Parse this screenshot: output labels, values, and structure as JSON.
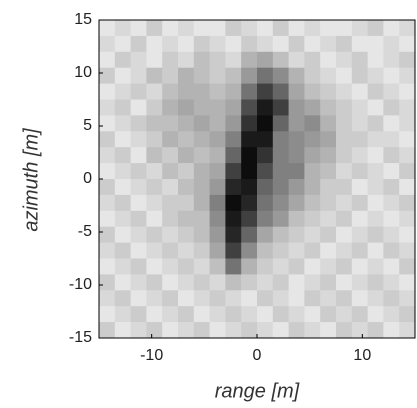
{
  "chart_data": {
    "type": "heatmap",
    "xlabel": "range [m]",
    "ylabel": "azimuth [m]",
    "xlim": [
      -15,
      15
    ],
    "ylim": [
      -15,
      15
    ],
    "xticks": [
      -10,
      0,
      10
    ],
    "yticks": [
      -15,
      -10,
      -5,
      0,
      5,
      10,
      15
    ],
    "zlim": [
      0,
      1
    ],
    "colors": [
      "#ffffff",
      "#000000"
    ],
    "x": [
      -14.25,
      -12.75,
      -11.25,
      -9.75,
      -8.25,
      -6.75,
      -5.25,
      -3.75,
      -2.25,
      -0.75,
      0.75,
      2.25,
      3.75,
      5.25,
      6.75,
      8.25,
      9.75,
      11.25,
      12.75,
      14.25
    ],
    "y": [
      14.25,
      12.75,
      11.25,
      9.75,
      8.25,
      6.75,
      5.25,
      3.75,
      2.25,
      0.75,
      -0.75,
      -2.25,
      -3.75,
      -5.25,
      -6.75,
      -8.25,
      -9.75,
      -11.25,
      -12.75,
      -14.25
    ],
    "z": [
      [
        0.1,
        0.15,
        0.1,
        0.2,
        0.1,
        0.15,
        0.1,
        0.1,
        0.2,
        0.15,
        0.1,
        0.2,
        0.1,
        0.15,
        0.1,
        0.1,
        0.15,
        0.2,
        0.1,
        0.15
      ],
      [
        0.15,
        0.1,
        0.2,
        0.1,
        0.15,
        0.1,
        0.2,
        0.15,
        0.1,
        0.2,
        0.15,
        0.1,
        0.2,
        0.1,
        0.15,
        0.2,
        0.1,
        0.1,
        0.15,
        0.1
      ],
      [
        0.1,
        0.2,
        0.15,
        0.1,
        0.2,
        0.15,
        0.25,
        0.2,
        0.15,
        0.3,
        0.35,
        0.25,
        0.15,
        0.2,
        0.1,
        0.15,
        0.2,
        0.1,
        0.15,
        0.2
      ],
      [
        0.2,
        0.1,
        0.15,
        0.25,
        0.2,
        0.3,
        0.25,
        0.2,
        0.25,
        0.4,
        0.55,
        0.45,
        0.3,
        0.2,
        0.15,
        0.1,
        0.2,
        0.15,
        0.1,
        0.15
      ],
      [
        0.1,
        0.15,
        0.2,
        0.15,
        0.25,
        0.3,
        0.3,
        0.25,
        0.3,
        0.55,
        0.75,
        0.6,
        0.35,
        0.25,
        0.2,
        0.15,
        0.1,
        0.2,
        0.15,
        0.1
      ],
      [
        0.15,
        0.2,
        0.1,
        0.2,
        0.3,
        0.35,
        0.3,
        0.3,
        0.35,
        0.7,
        0.9,
        0.75,
        0.4,
        0.35,
        0.25,
        0.2,
        0.15,
        0.1,
        0.2,
        0.15
      ],
      [
        0.1,
        0.15,
        0.2,
        0.25,
        0.25,
        0.3,
        0.35,
        0.3,
        0.4,
        0.8,
        0.95,
        0.6,
        0.4,
        0.45,
        0.3,
        0.2,
        0.15,
        0.2,
        0.1,
        0.15
      ],
      [
        0.2,
        0.1,
        0.15,
        0.2,
        0.3,
        0.25,
        0.3,
        0.35,
        0.5,
        0.9,
        0.9,
        0.5,
        0.45,
        0.4,
        0.35,
        0.2,
        0.2,
        0.15,
        0.15,
        0.1
      ],
      [
        0.15,
        0.2,
        0.1,
        0.25,
        0.2,
        0.3,
        0.25,
        0.3,
        0.6,
        0.95,
        0.8,
        0.5,
        0.45,
        0.35,
        0.3,
        0.2,
        0.15,
        0.1,
        0.2,
        0.15
      ],
      [
        0.1,
        0.15,
        0.2,
        0.15,
        0.25,
        0.2,
        0.3,
        0.35,
        0.75,
        0.95,
        0.7,
        0.5,
        0.5,
        0.3,
        0.25,
        0.15,
        0.2,
        0.15,
        0.1,
        0.2
      ],
      [
        0.2,
        0.1,
        0.15,
        0.2,
        0.15,
        0.25,
        0.3,
        0.4,
        0.85,
        0.9,
        0.6,
        0.5,
        0.4,
        0.3,
        0.2,
        0.2,
        0.1,
        0.15,
        0.2,
        0.1
      ],
      [
        0.15,
        0.2,
        0.1,
        0.15,
        0.2,
        0.2,
        0.3,
        0.5,
        0.95,
        0.85,
        0.55,
        0.45,
        0.35,
        0.25,
        0.2,
        0.15,
        0.2,
        0.1,
        0.15,
        0.2
      ],
      [
        0.1,
        0.15,
        0.2,
        0.1,
        0.2,
        0.25,
        0.25,
        0.45,
        0.9,
        0.75,
        0.5,
        0.4,
        0.25,
        0.2,
        0.15,
        0.2,
        0.1,
        0.15,
        0.1,
        0.15
      ],
      [
        0.2,
        0.1,
        0.15,
        0.2,
        0.15,
        0.2,
        0.25,
        0.4,
        0.85,
        0.6,
        0.35,
        0.25,
        0.2,
        0.15,
        0.2,
        0.1,
        0.15,
        0.2,
        0.15,
        0.1
      ],
      [
        0.15,
        0.2,
        0.1,
        0.15,
        0.2,
        0.15,
        0.2,
        0.35,
        0.75,
        0.45,
        0.25,
        0.2,
        0.15,
        0.2,
        0.1,
        0.15,
        0.2,
        0.1,
        0.2,
        0.15
      ],
      [
        0.1,
        0.15,
        0.2,
        0.1,
        0.15,
        0.2,
        0.15,
        0.25,
        0.55,
        0.3,
        0.2,
        0.15,
        0.2,
        0.1,
        0.15,
        0.2,
        0.1,
        0.15,
        0.1,
        0.2
      ],
      [
        0.2,
        0.1,
        0.15,
        0.2,
        0.1,
        0.15,
        0.2,
        0.15,
        0.25,
        0.2,
        0.15,
        0.2,
        0.1,
        0.15,
        0.2,
        0.1,
        0.15,
        0.2,
        0.15,
        0.1
      ],
      [
        0.15,
        0.2,
        0.1,
        0.15,
        0.2,
        0.1,
        0.15,
        0.2,
        0.15,
        0.1,
        0.2,
        0.15,
        0.1,
        0.2,
        0.15,
        0.2,
        0.1,
        0.15,
        0.2,
        0.15
      ],
      [
        0.1,
        0.15,
        0.2,
        0.1,
        0.15,
        0.2,
        0.1,
        0.15,
        0.2,
        0.15,
        0.1,
        0.2,
        0.15,
        0.1,
        0.2,
        0.15,
        0.2,
        0.1,
        0.15,
        0.2
      ],
      [
        0.2,
        0.1,
        0.15,
        0.2,
        0.1,
        0.15,
        0.2,
        0.1,
        0.15,
        0.2,
        0.15,
        0.1,
        0.2,
        0.15,
        0.1,
        0.2,
        0.15,
        0.2,
        0.1,
        0.15
      ]
    ]
  }
}
